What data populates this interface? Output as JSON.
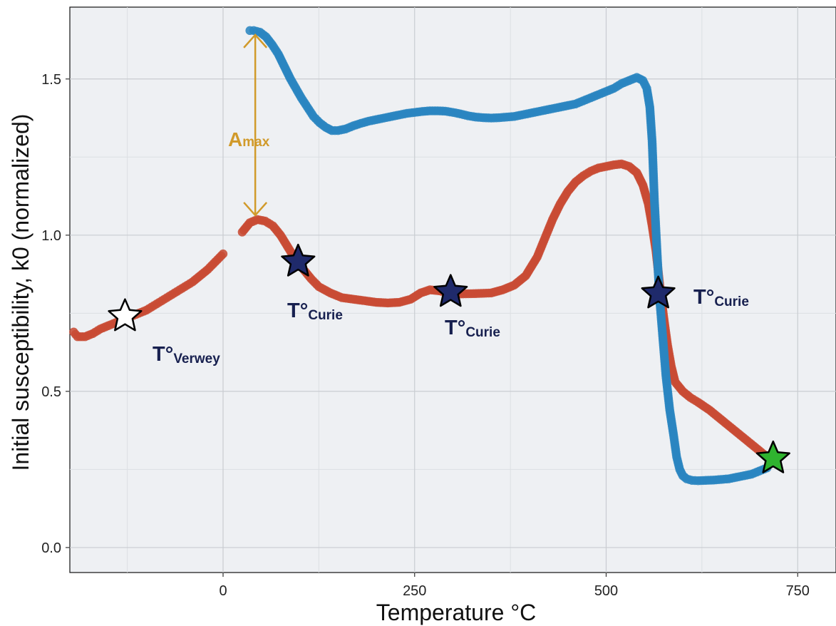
{
  "chart_data": {
    "type": "scatter",
    "xlabel": "Temperature °C",
    "ylabel": "Initial susceptibility, k0 (normalized)",
    "xlim": [
      -200,
      800
    ],
    "ylim": [
      -0.08,
      1.73
    ],
    "x_ticks": [
      0,
      250,
      500,
      750
    ],
    "y_ticks": [
      0.0,
      0.5,
      1.0,
      1.5
    ],
    "tick_labels": {
      "x": [
        "0",
        "250",
        "500",
        "750"
      ],
      "y": [
        "0.0",
        "0.5",
        "1.0",
        "1.5"
      ]
    },
    "grid": true,
    "legend": "none",
    "colors": {
      "panel": "#eef0f3",
      "grid_major": "#c9ccd1",
      "grid_minor": "#dcdfe3",
      "heating": "#c84b34",
      "cooling": "#2a85c0",
      "arrow": "#d19a2a",
      "annotation_text": "#17204f",
      "star_dark": "#1f2a6b",
      "star_open": "#ffffff",
      "star_end": "#2fb32f"
    },
    "series": [
      {
        "color": "#c84b34",
        "points": [
          [
            -195,
            0.69
          ],
          [
            -190,
            0.675
          ],
          [
            -180,
            0.675
          ],
          [
            -170,
            0.685
          ],
          [
            -160,
            0.7
          ],
          [
            -150,
            0.71
          ],
          [
            -140,
            0.72
          ],
          [
            -130,
            0.73
          ],
          [
            -120,
            0.74
          ],
          [
            -110,
            0.75
          ],
          [
            -100,
            0.76
          ],
          [
            -90,
            0.775
          ],
          [
            -80,
            0.79
          ],
          [
            -70,
            0.805
          ],
          [
            -60,
            0.82
          ],
          [
            -50,
            0.835
          ],
          [
            -40,
            0.85
          ],
          [
            -30,
            0.87
          ],
          [
            -20,
            0.89
          ],
          [
            -10,
            0.915
          ],
          [
            0,
            0.94
          ],
          [
            25,
            1.01
          ],
          [
            35,
            1.04
          ],
          [
            45,
            1.05
          ],
          [
            55,
            1.045
          ],
          [
            65,
            1.03
          ],
          [
            75,
            1.0
          ],
          [
            85,
            0.96
          ],
          [
            95,
            0.92
          ],
          [
            105,
            0.89
          ],
          [
            115,
            0.86
          ],
          [
            125,
            0.835
          ],
          [
            140,
            0.815
          ],
          [
            155,
            0.8
          ],
          [
            170,
            0.795
          ],
          [
            185,
            0.79
          ],
          [
            200,
            0.785
          ],
          [
            215,
            0.783
          ],
          [
            230,
            0.785
          ],
          [
            245,
            0.795
          ],
          [
            258,
            0.815
          ],
          [
            270,
            0.825
          ],
          [
            282,
            0.822
          ],
          [
            295,
            0.815
          ],
          [
            310,
            0.812
          ],
          [
            330,
            0.813
          ],
          [
            350,
            0.815
          ],
          [
            365,
            0.825
          ],
          [
            380,
            0.84
          ],
          [
            395,
            0.87
          ],
          [
            410,
            0.93
          ],
          [
            420,
            0.99
          ],
          [
            430,
            1.05
          ],
          [
            440,
            1.1
          ],
          [
            450,
            1.14
          ],
          [
            460,
            1.17
          ],
          [
            470,
            1.19
          ],
          [
            480,
            1.205
          ],
          [
            490,
            1.215
          ],
          [
            500,
            1.22
          ],
          [
            510,
            1.225
          ],
          [
            520,
            1.228
          ],
          [
            530,
            1.22
          ],
          [
            540,
            1.2
          ],
          [
            548,
            1.16
          ],
          [
            555,
            1.1
          ],
          [
            560,
            1.03
          ],
          [
            565,
            0.95
          ],
          [
            570,
            0.84
          ],
          [
            575,
            0.74
          ],
          [
            580,
            0.65
          ],
          [
            585,
            0.58
          ],
          [
            590,
            0.53
          ],
          [
            600,
            0.5
          ],
          [
            610,
            0.48
          ],
          [
            620,
            0.465
          ],
          [
            635,
            0.44
          ],
          [
            650,
            0.41
          ],
          [
            660,
            0.39
          ],
          [
            670,
            0.37
          ],
          [
            680,
            0.35
          ],
          [
            690,
            0.33
          ],
          [
            700,
            0.31
          ],
          [
            710,
            0.29
          ]
        ]
      },
      {
        "color": "#2a85c0",
        "points": [
          [
            710,
            0.255
          ],
          [
            700,
            0.245
          ],
          [
            690,
            0.235
          ],
          [
            680,
            0.23
          ],
          [
            670,
            0.225
          ],
          [
            660,
            0.22
          ],
          [
            650,
            0.218
          ],
          [
            640,
            0.216
          ],
          [
            630,
            0.215
          ],
          [
            620,
            0.214
          ],
          [
            612,
            0.215
          ],
          [
            605,
            0.22
          ],
          [
            600,
            0.23
          ],
          [
            596,
            0.25
          ],
          [
            592,
            0.29
          ],
          [
            588,
            0.36
          ],
          [
            583,
            0.44
          ],
          [
            578,
            0.55
          ],
          [
            574,
            0.67
          ],
          [
            570,
            0.79
          ],
          [
            567,
            0.92
          ],
          [
            563,
            1.11
          ],
          [
            560,
            1.3
          ],
          [
            557,
            1.41
          ],
          [
            553,
            1.47
          ],
          [
            548,
            1.495
          ],
          [
            540,
            1.505
          ],
          [
            530,
            1.495
          ],
          [
            520,
            1.485
          ],
          [
            510,
            1.47
          ],
          [
            500,
            1.46
          ],
          [
            490,
            1.45
          ],
          [
            480,
            1.44
          ],
          [
            470,
            1.43
          ],
          [
            460,
            1.42
          ],
          [
            450,
            1.415
          ],
          [
            440,
            1.41
          ],
          [
            430,
            1.405
          ],
          [
            420,
            1.4
          ],
          [
            410,
            1.395
          ],
          [
            400,
            1.39
          ],
          [
            390,
            1.385
          ],
          [
            380,
            1.38
          ],
          [
            370,
            1.378
          ],
          [
            360,
            1.376
          ],
          [
            350,
            1.375
          ],
          [
            340,
            1.376
          ],
          [
            330,
            1.378
          ],
          [
            320,
            1.382
          ],
          [
            310,
            1.388
          ],
          [
            300,
            1.393
          ],
          [
            290,
            1.397
          ],
          [
            280,
            1.398
          ],
          [
            270,
            1.398
          ],
          [
            260,
            1.396
          ],
          [
            250,
            1.393
          ],
          [
            240,
            1.39
          ],
          [
            230,
            1.385
          ],
          [
            220,
            1.38
          ],
          [
            210,
            1.375
          ],
          [
            200,
            1.37
          ],
          [
            190,
            1.365
          ],
          [
            180,
            1.358
          ],
          [
            170,
            1.35
          ],
          [
            160,
            1.34
          ],
          [
            150,
            1.335
          ],
          [
            142,
            1.335
          ],
          [
            134,
            1.345
          ],
          [
            126,
            1.36
          ],
          [
            118,
            1.38
          ],
          [
            110,
            1.41
          ],
          [
            102,
            1.44
          ],
          [
            95,
            1.47
          ],
          [
            88,
            1.5
          ],
          [
            80,
            1.54
          ],
          [
            72,
            1.58
          ],
          [
            64,
            1.61
          ],
          [
            56,
            1.635
          ],
          [
            48,
            1.65
          ],
          [
            40,
            1.655
          ],
          [
            35,
            1.655
          ]
        ]
      }
    ],
    "arrow": {
      "x": 42,
      "y_top": 1.655,
      "y_bottom": 1.05
    },
    "annotations": [
      {
        "key": "amax",
        "main": "A",
        "sub": "max"
      },
      {
        "key": "verwey",
        "main": "T°",
        "sub": "Verwey",
        "star_x": -128,
        "star_y": 0.74,
        "star": "open"
      },
      {
        "key": "curie1",
        "main": "T°",
        "sub": "Curie",
        "star_x": 98,
        "star_y": 0.915,
        "star": "dark"
      },
      {
        "key": "curie2",
        "main": "T°",
        "sub": "Curie",
        "star_x": 297,
        "star_y": 0.818,
        "star": "dark"
      },
      {
        "key": "curie3",
        "main": "T°",
        "sub": "Curie",
        "star_x": 568,
        "star_y": 0.813,
        "star": "dark"
      },
      {
        "key": "end",
        "star_x": 718,
        "star_y": 0.285,
        "star": "green"
      }
    ]
  }
}
